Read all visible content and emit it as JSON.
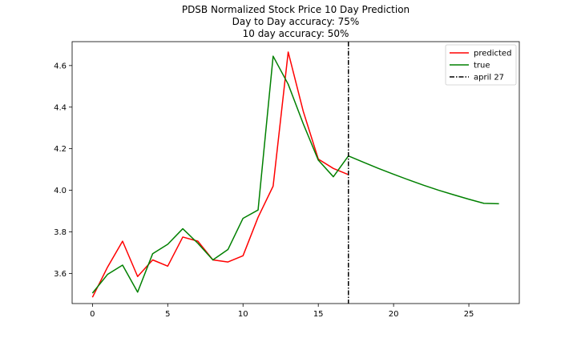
{
  "chart_data": {
    "type": "line",
    "title": [
      "PDSB Normalized Stock Price 10 Day Prediction",
      "Day to Day accuracy: 75%",
      "10 day accuracy: 50%"
    ],
    "xlabel": "",
    "ylabel": "",
    "xlim": [
      -1.35,
      28.35
    ],
    "ylim": [
      3.455,
      4.715
    ],
    "xticks": [
      0,
      5,
      10,
      15,
      20,
      25
    ],
    "xtick_labels": [
      "0",
      "5",
      "10",
      "15",
      "20",
      "25"
    ],
    "yticks": [
      3.6,
      3.8,
      4.0,
      4.2,
      4.4,
      4.6
    ],
    "ytick_labels": [
      "3.6",
      "3.8",
      "4.0",
      "4.2",
      "4.4",
      "4.6"
    ],
    "grid": false,
    "legend_position": "top-right",
    "series": [
      {
        "name": "predicted",
        "color": "#ff0000",
        "x": [
          0,
          1,
          2,
          3,
          4,
          5,
          6,
          7,
          8,
          9,
          10,
          11,
          12,
          13,
          14,
          15,
          16,
          17
        ],
        "values": [
          3.485,
          3.63,
          3.755,
          3.585,
          3.665,
          3.635,
          3.775,
          3.755,
          3.665,
          3.655,
          3.685,
          3.87,
          4.02,
          4.665,
          4.38,
          4.15,
          4.105,
          4.075
        ]
      },
      {
        "name": "true",
        "color": "#008000",
        "x": [
          0,
          1,
          2,
          3,
          4,
          5,
          6,
          7,
          8,
          9,
          10,
          11,
          12,
          13,
          14,
          15,
          16,
          17,
          18,
          19,
          20,
          21,
          22,
          23,
          24,
          25,
          26,
          27
        ],
        "values": [
          3.505,
          3.595,
          3.64,
          3.51,
          3.695,
          3.74,
          3.815,
          3.745,
          3.665,
          3.715,
          3.865,
          3.905,
          4.645,
          4.51,
          4.32,
          4.145,
          4.065,
          4.165,
          4.135,
          4.105,
          4.077,
          4.05,
          4.024,
          4.0,
          3.978,
          3.957,
          3.937,
          3.935
        ]
      }
    ],
    "vlines": [
      {
        "name": "april 27",
        "x": 17,
        "color": "#000000",
        "style": "dashdot"
      }
    ]
  }
}
